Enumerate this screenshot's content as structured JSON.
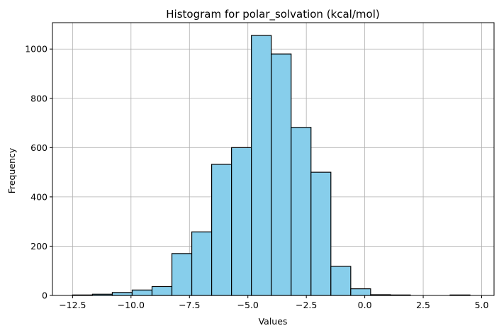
{
  "chart_data": {
    "type": "bar",
    "title": "Histogram for polar_solvation (kcal/mol)",
    "xlabel": "Values",
    "ylabel": "Frequency",
    "xlim": [
      -13.36,
      5.53
    ],
    "ylim": [
      0,
      1107
    ],
    "grid": true,
    "bar_color": "#87ceeb",
    "edge_color": "#000000",
    "x_ticks": [
      -12.5,
      -10.0,
      -7.5,
      -5.0,
      -2.5,
      0.0,
      2.5,
      5.0
    ],
    "x_tick_labels": [
      "−12.5",
      "−10.0",
      "−7.5",
      "−5.0",
      "−2.5",
      "0.0",
      "2.5",
      "5.0"
    ],
    "y_ticks": [
      0,
      200,
      400,
      600,
      800,
      1000
    ],
    "y_tick_labels": [
      "0",
      "200",
      "400",
      "600",
      "800",
      "1000"
    ],
    "bin_edges": [
      -12.5,
      -11.65,
      -10.8,
      -9.95,
      -9.1,
      -8.25,
      -7.4,
      -6.55,
      -5.7,
      -4.85,
      -4.0,
      -3.15,
      -2.3,
      -1.45,
      -0.6,
      0.25,
      1.1,
      1.95,
      2.8,
      3.65,
      4.5
    ],
    "counts": [
      2,
      5,
      12,
      22,
      36,
      170,
      258,
      532,
      600,
      1055,
      980,
      682,
      500,
      118,
      27,
      3,
      2,
      0,
      0,
      2
    ]
  }
}
